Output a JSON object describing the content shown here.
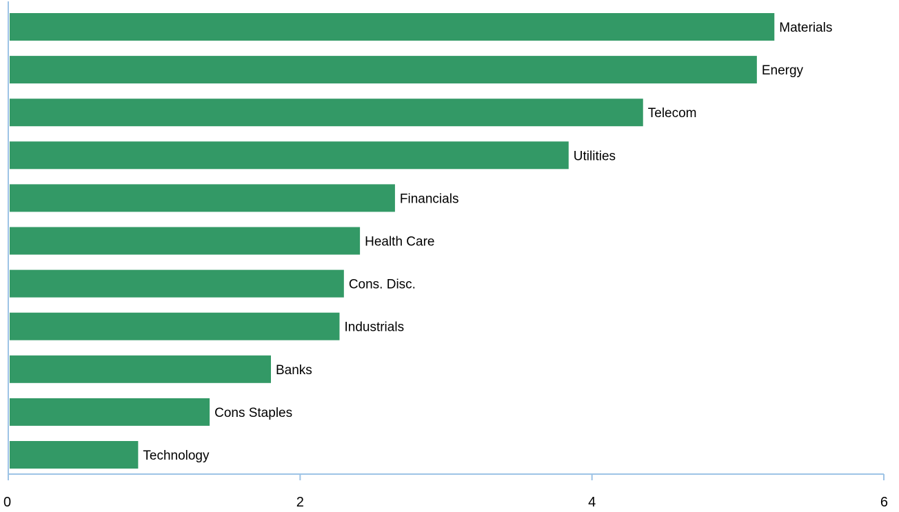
{
  "chart_data": {
    "type": "bar",
    "orientation": "horizontal",
    "categories": [
      "Materials",
      "Energy",
      "Telecom",
      "Utilities",
      "Financials",
      "Health Care",
      "Cons. Disc.",
      "Industrials",
      "Banks",
      "Cons Staples",
      "Technology"
    ],
    "values": [
      5.25,
      5.13,
      4.35,
      3.84,
      2.65,
      2.41,
      2.3,
      2.27,
      1.8,
      1.38,
      0.89
    ],
    "xlim": [
      0,
      6
    ],
    "xticks": [
      "0",
      "2",
      "4",
      "6"
    ],
    "title": "",
    "xlabel": "",
    "ylabel": "",
    "grid": false,
    "legend": "none",
    "colors": {
      "bar": "#339966",
      "axis": "#9dc3e6"
    }
  }
}
